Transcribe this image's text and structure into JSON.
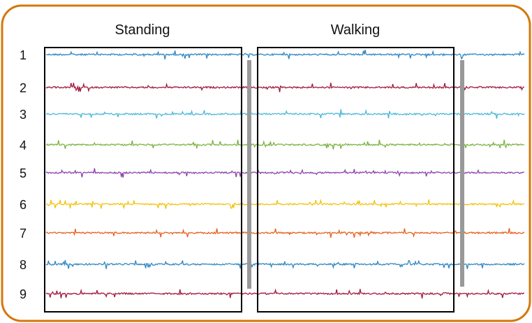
{
  "chart_data": {
    "type": "line",
    "title": "",
    "xlabel": "",
    "ylabel": "",
    "segments": [
      "Standing",
      "Walking"
    ],
    "channels": [
      {
        "label": "1",
        "color": "#2e86c1"
      },
      {
        "label": "2",
        "color": "#a3193f"
      },
      {
        "label": "3",
        "color": "#4db8d8"
      },
      {
        "label": "4",
        "color": "#7cb342"
      },
      {
        "label": "5",
        "color": "#8e44ad"
      },
      {
        "label": "6",
        "color": "#f1c40f"
      },
      {
        "label": "7",
        "color": "#e8601c"
      },
      {
        "label": "8",
        "color": "#2e86c1"
      },
      {
        "label": "9",
        "color": "#a3193f"
      }
    ],
    "grid": false,
    "legend": "none",
    "frame_color": "#d4780a",
    "box_color": "#000000",
    "divider_color": "#999999"
  }
}
